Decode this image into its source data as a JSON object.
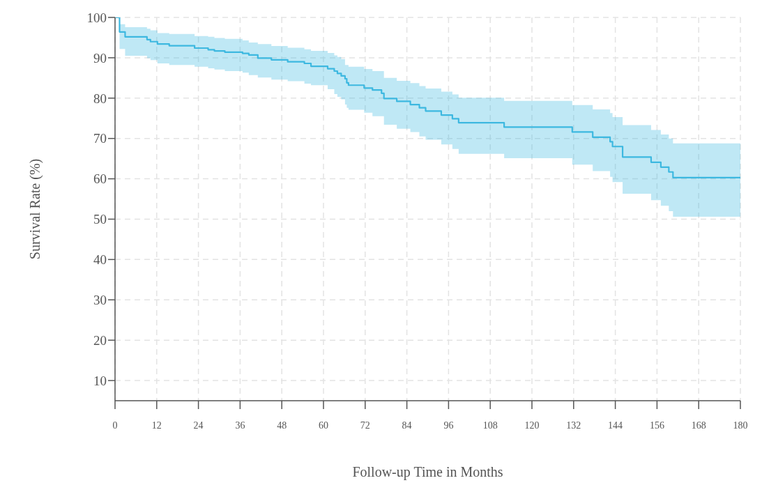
{
  "chart_data": {
    "type": "step",
    "xlabel": "Follow-up Time in Months",
    "ylabel": "Survival Rate (%)",
    "xlim": [
      0,
      180
    ],
    "xticks": [
      0,
      12,
      24,
      36,
      48,
      60,
      72,
      84,
      96,
      108,
      120,
      132,
      144,
      156,
      168,
      180
    ],
    "ylim": [
      5,
      100
    ],
    "yticks": [
      10,
      20,
      30,
      40,
      50,
      60,
      70,
      80,
      90,
      100
    ],
    "grid": true,
    "legend": false,
    "series": [
      {
        "color": "#3db8e0",
        "x": [
          0,
          1.3,
          2.9,
          9.2,
          10.2,
          12.2,
          15.6,
          22.9,
          26.8,
          28.6,
          31.6,
          36.7,
          38.5,
          41.1,
          45.0,
          49.7,
          54.5,
          56.4,
          61.2,
          63.1,
          64.0,
          65.1,
          66.2,
          66.7,
          67.2,
          71.7,
          74.1,
          76.7,
          77.4,
          81.1,
          85.0,
          87.6,
          89.4,
          93.9,
          97.1,
          98.9,
          112.0,
          131.6,
          137.5,
          142.5,
          143.2,
          146.1,
          154.3,
          157.1,
          159.4,
          160.6,
          180
        ],
        "values": [
          100,
          96.4,
          95.2,
          94.5,
          94.0,
          93.4,
          93.0,
          92.4,
          92.0,
          91.7,
          91.4,
          91.1,
          90.7,
          89.9,
          89.5,
          89.0,
          88.6,
          87.9,
          87.3,
          86.7,
          86.1,
          85.5,
          84.8,
          83.8,
          83.2,
          82.5,
          82.0,
          81.2,
          79.9,
          79.2,
          78.4,
          77.6,
          76.8,
          75.8,
          74.9,
          73.9,
          72.8,
          71.6,
          70.3,
          69.2,
          68.0,
          65.4,
          64.1,
          62.9,
          61.7,
          60.3,
          60.3
        ],
        "upper": [
          100,
          98.3,
          97.6,
          97.2,
          96.8,
          96.1,
          95.9,
          95.4,
          95.2,
          94.9,
          94.7,
          94.3,
          93.8,
          93.4,
          92.9,
          92.5,
          92.1,
          91.7,
          91.2,
          90.6,
          90.2,
          89.7,
          88.2,
          88.2,
          87.8,
          87.2,
          86.7,
          86.7,
          85.0,
          84.3,
          83.7,
          83.0,
          82.4,
          81.6,
          80.9,
          80.1,
          79.3,
          78.3,
          77.2,
          76.3,
          75.3,
          73.3,
          72.1,
          71.0,
          70.0,
          68.8,
          68.8
        ],
        "lower": [
          100,
          92.2,
          90.5,
          89.9,
          89.4,
          88.6,
          88.2,
          87.8,
          87.4,
          87.1,
          86.7,
          86.3,
          85.7,
          85.1,
          84.6,
          84.2,
          83.6,
          83.2,
          82.2,
          81.0,
          80.3,
          79.7,
          78.4,
          77.6,
          77.1,
          76.4,
          75.5,
          75.5,
          73.4,
          72.4,
          71.6,
          70.5,
          69.7,
          68.5,
          67.4,
          66.2,
          65.1,
          63.5,
          61.9,
          60.5,
          59.2,
          56.3,
          54.7,
          53.3,
          52.0,
          50.6,
          50.6
        ]
      }
    ]
  }
}
